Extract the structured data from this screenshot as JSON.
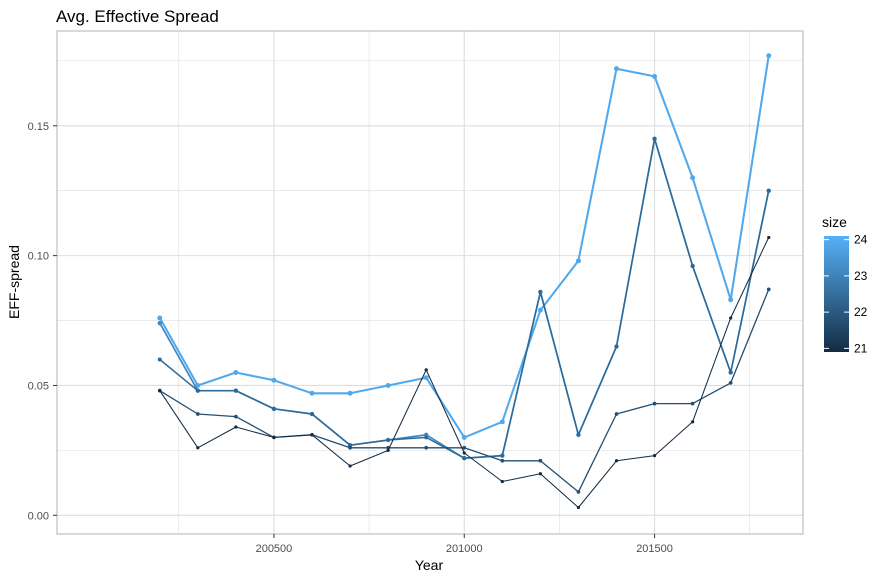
{
  "chart_data": {
    "type": "line",
    "title": "Avg. Effective Spread",
    "xlabel": "Year",
    "ylabel": "EFF-spread",
    "x": [
      200200,
      200300,
      200400,
      200500,
      200600,
      200700,
      200800,
      200900,
      201000,
      201100,
      201200,
      201300,
      201400,
      201500,
      201600,
      201700,
      201800
    ],
    "xlim": [
      199930,
      201890
    ],
    "ylim": [
      -0.0072,
      0.1865
    ],
    "x_ticks": [
      {
        "value": 200250,
        "label": ""
      },
      {
        "value": 200500,
        "label": "200500"
      },
      {
        "value": 200750,
        "label": ""
      },
      {
        "value": 201000,
        "label": "201000"
      },
      {
        "value": 201250,
        "label": ""
      },
      {
        "value": 201500,
        "label": "201500"
      },
      {
        "value": 201750,
        "label": ""
      }
    ],
    "y_ticks": [
      {
        "value": 0.0,
        "label": "0.00"
      },
      {
        "value": 0.025,
        "label": ""
      },
      {
        "value": 0.05,
        "label": "0.05"
      },
      {
        "value": 0.075,
        "label": ""
      },
      {
        "value": 0.1,
        "label": "0.10"
      },
      {
        "value": 0.125,
        "label": ""
      },
      {
        "value": 0.15,
        "label": "0.15"
      },
      {
        "value": 0.175,
        "label": ""
      }
    ],
    "grid": true,
    "legend": {
      "title": "size",
      "position": "right",
      "type": "colorbar",
      "range": [
        20.9,
        24.1
      ],
      "ticks": [
        21,
        22,
        23,
        24
      ],
      "color_low": "#132B43",
      "color_high": "#56B1F7"
    },
    "series": [
      {
        "size": 24.0,
        "color": "#51A9EC",
        "values": [
          0.076,
          0.05,
          0.055,
          0.052,
          0.047,
          0.047,
          0.05,
          0.053,
          0.03,
          0.036,
          0.079,
          0.098,
          0.172,
          0.169,
          0.13,
          0.083,
          0.177
        ]
      },
      {
        "size": 23.0,
        "color": "#3E88C2",
        "values": [
          0.074,
          0.048,
          0.048,
          0.041,
          0.039,
          0.027,
          0.029,
          0.031,
          0.022,
          0.023,
          0.086,
          0.031,
          0.065,
          0.145,
          0.096,
          0.055,
          0.125
        ]
      },
      {
        "size": 22.3,
        "color": "#2E6A98",
        "values": [
          0.06,
          0.048,
          0.048,
          0.041,
          0.039,
          0.027,
          0.029,
          0.03,
          0.022,
          0.023,
          0.086,
          0.031,
          0.065,
          0.145,
          0.096,
          0.055,
          0.125
        ]
      },
      {
        "size": 21.8,
        "color": "#244F72",
        "values": [
          0.048,
          0.039,
          0.038,
          0.03,
          0.031,
          0.026,
          0.026,
          0.026,
          0.026,
          0.021,
          0.021,
          0.009,
          0.039,
          0.043,
          0.043,
          0.051,
          0.087
        ]
      },
      {
        "size": 21.0,
        "color": "#132B43",
        "values": [
          0.048,
          0.026,
          0.034,
          0.03,
          0.031,
          0.019,
          0.025,
          0.056,
          0.024,
          0.013,
          0.016,
          0.003,
          0.021,
          0.023,
          0.036,
          0.076,
          0.107
        ]
      }
    ]
  }
}
